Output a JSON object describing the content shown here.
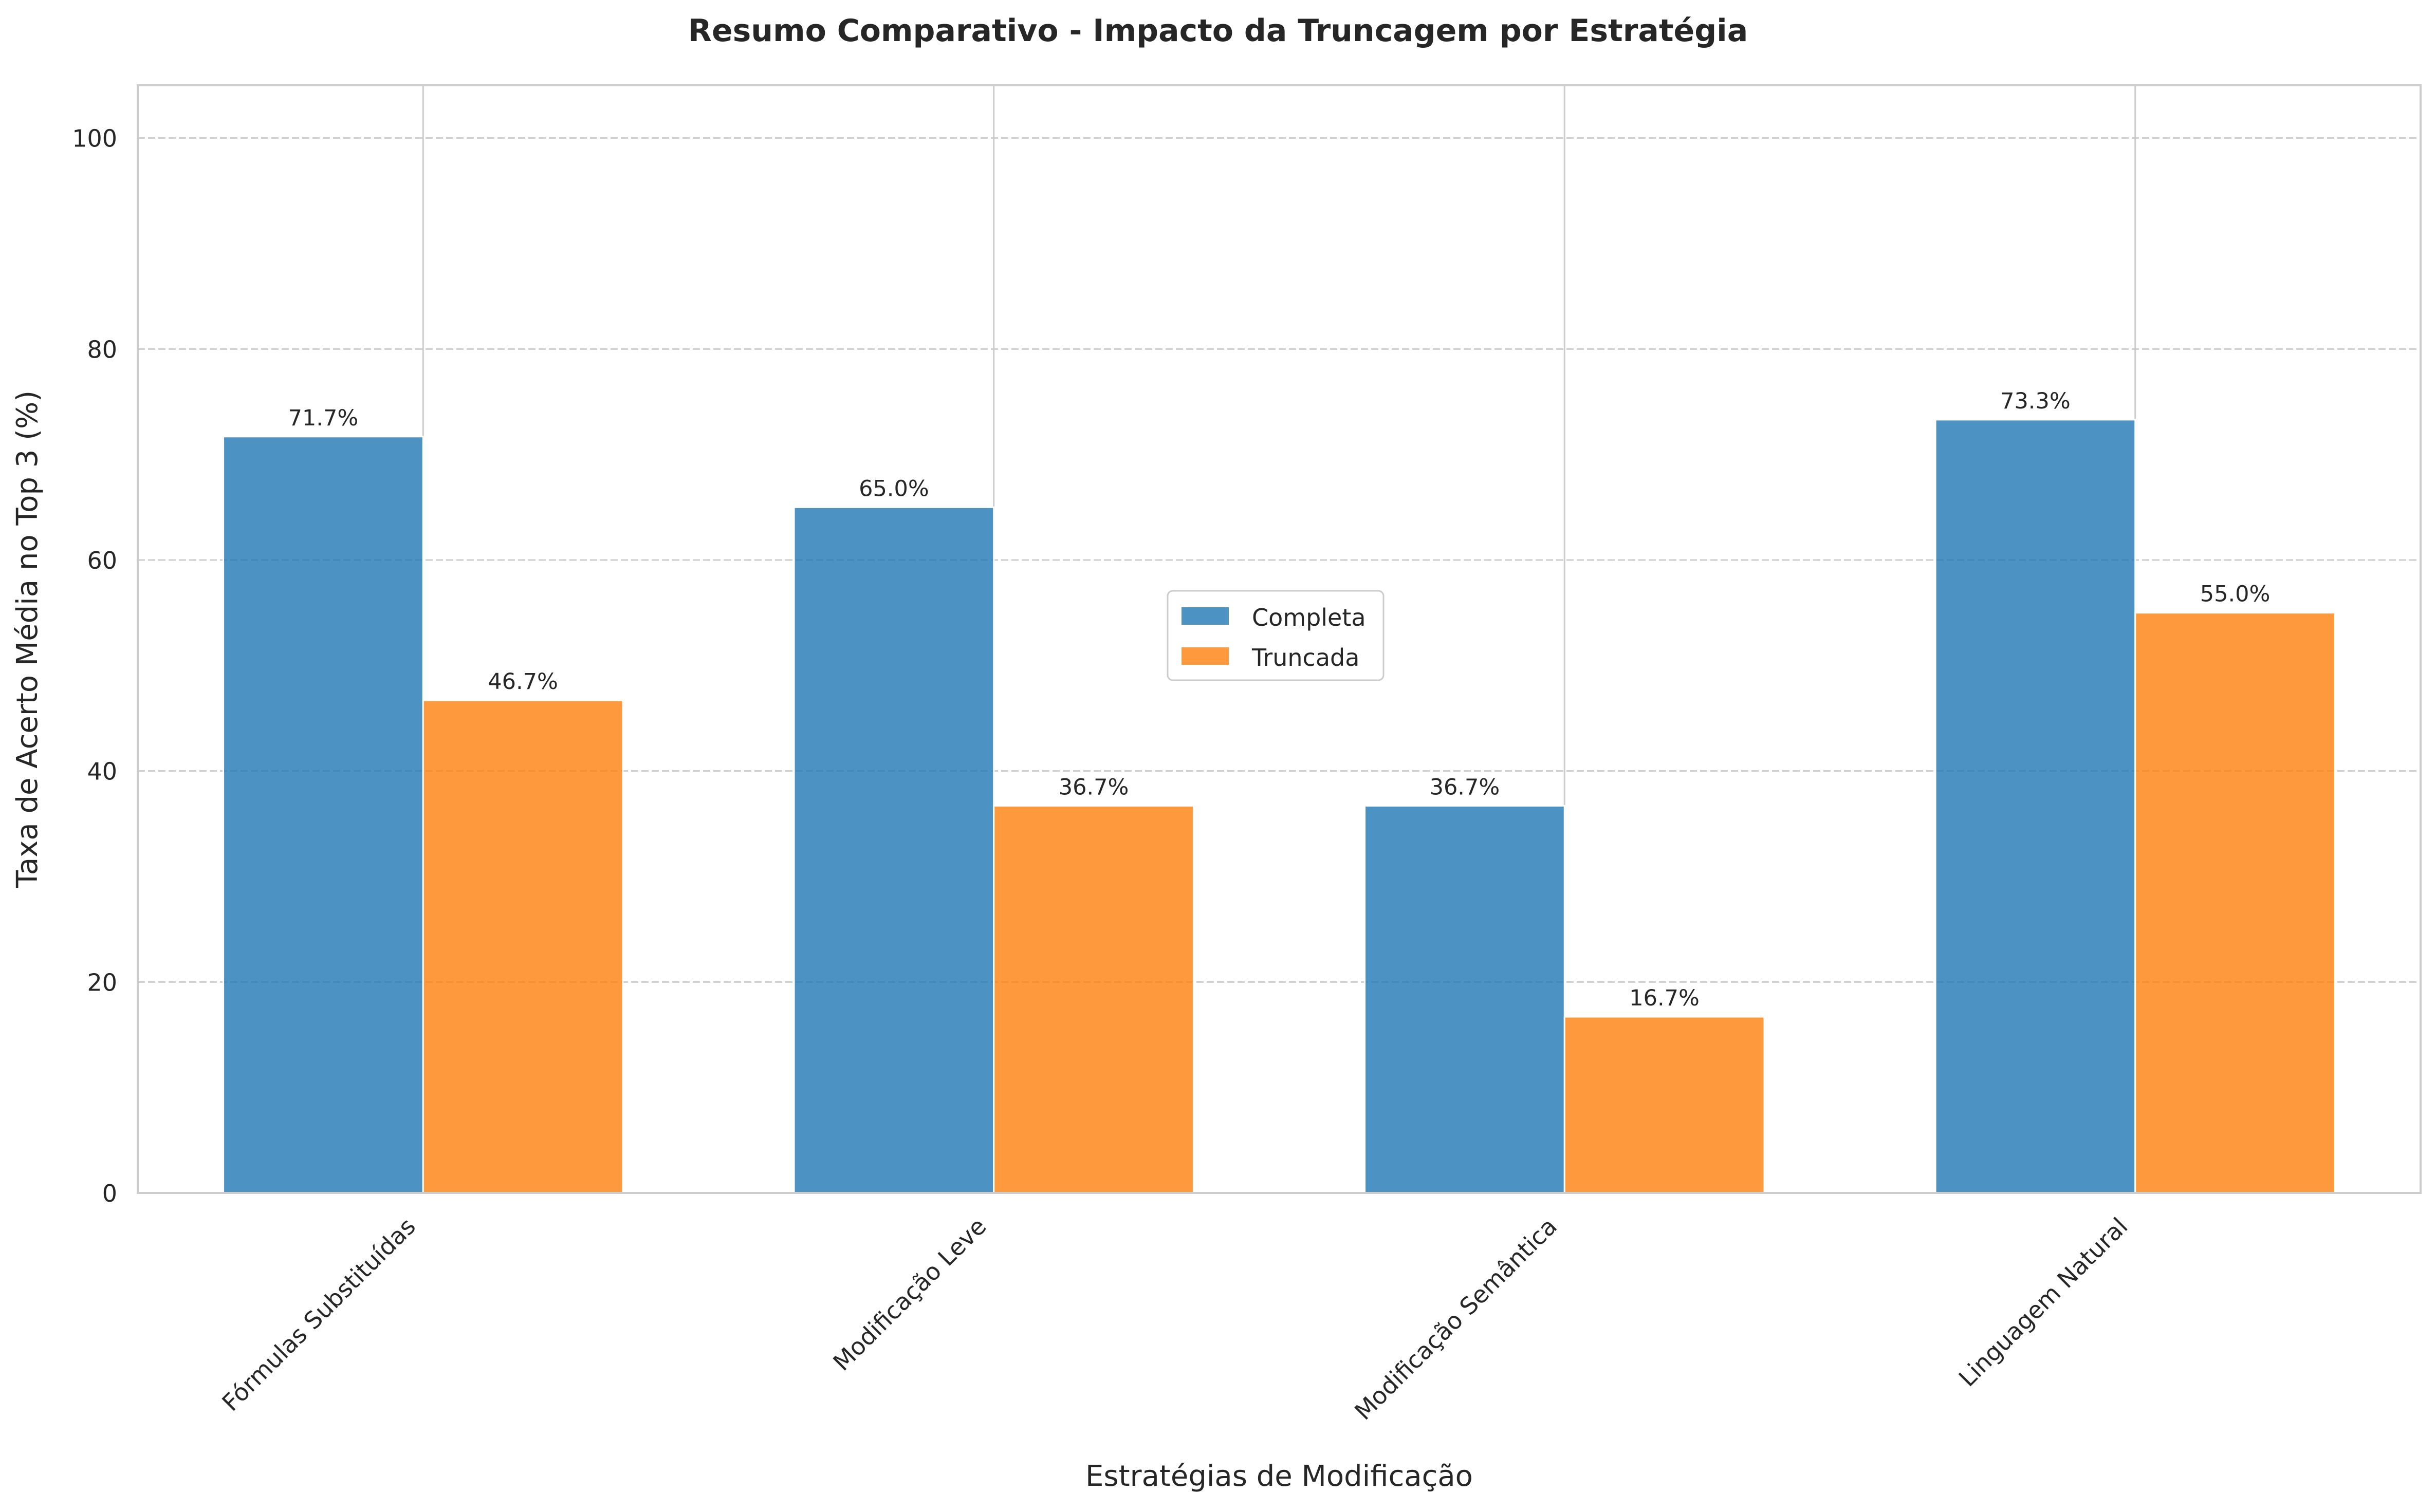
{
  "chart_data": {
    "type": "bar",
    "title": "Resumo Comparativo - Impacto da Truncagem por Estratégia",
    "xlabel": "Estratégias de Modificação",
    "ylabel": "Taxa de Acerto Média no Top 3 (%)",
    "categories": [
      "Fórmulas Substituídas",
      "Modificação Leve",
      "Modificação Semântica",
      "Linguagem Natural"
    ],
    "series": [
      {
        "name": "Completa",
        "values": [
          71.7,
          65.0,
          36.7,
          73.3
        ],
        "color": "#1f77b4"
      },
      {
        "name": "Truncada",
        "values": [
          46.7,
          36.7,
          16.7,
          55.0
        ],
        "color": "#ff7f0e"
      }
    ],
    "data_label_suffix": "%",
    "ylim": [
      0,
      105
    ],
    "yticks": [
      0,
      20,
      40,
      60,
      80,
      100
    ],
    "grid": true,
    "legend_position": "center"
  }
}
